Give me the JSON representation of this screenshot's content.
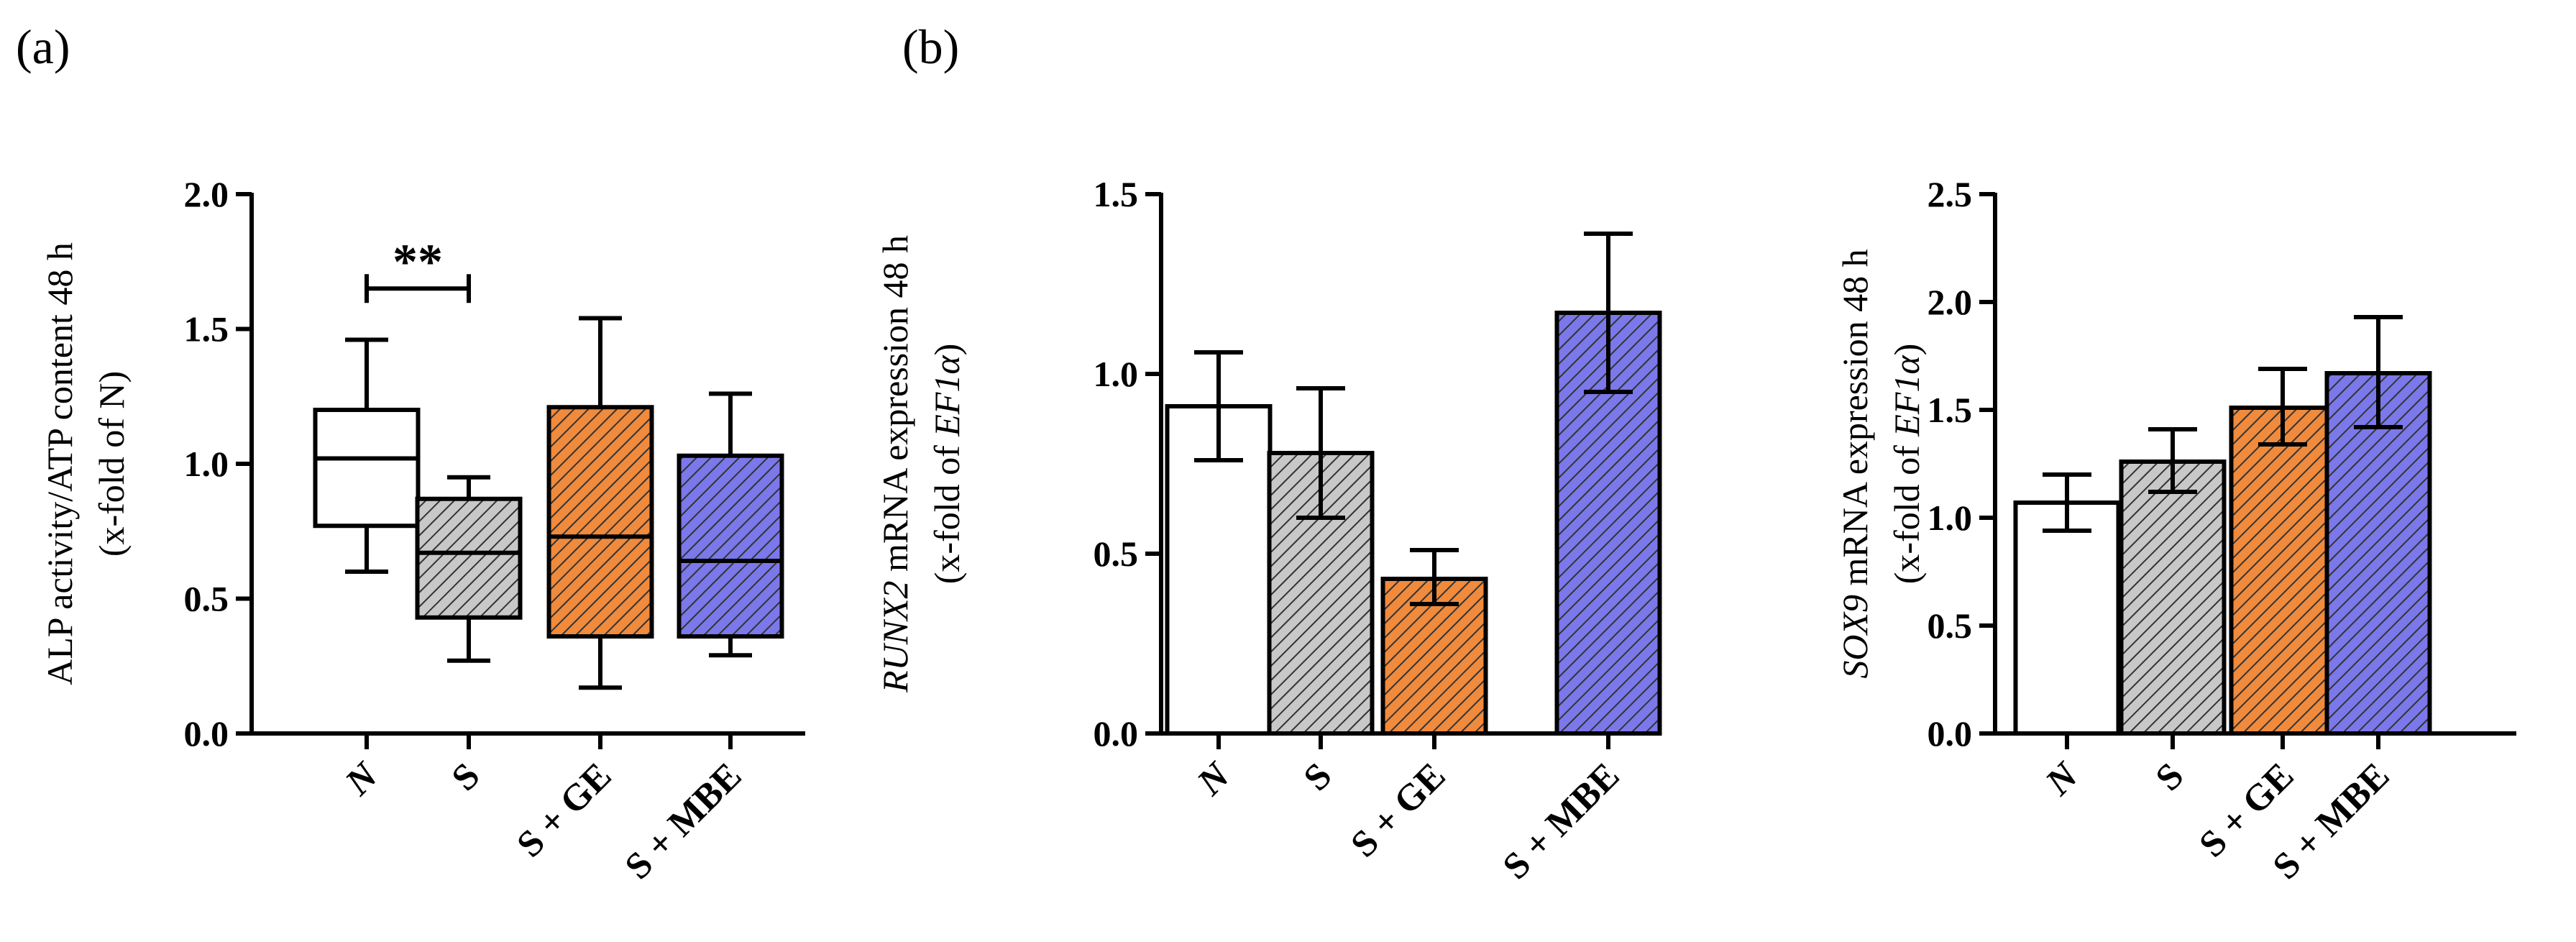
{
  "panel_labels": [
    "(a)",
    "(b)"
  ],
  "colors": {
    "N": "#ffffff",
    "S": "#c8c8c8",
    "S + GE": "#f08a3c",
    "S + MBE": "#7b78ea",
    "stroke": "#000000"
  },
  "chart_data": [
    {
      "type": "box",
      "panel": "(a)",
      "categories": [
        "N",
        "S",
        "S + GE",
        "S + MBE"
      ],
      "ylabel_line1": "ALP activity/ATP content 48 h",
      "ylabel_line2": "(x-fold of N)",
      "ylim": [
        0,
        2.0
      ],
      "yticks": [
        "0.0",
        "0.5",
        "1.0",
        "1.5",
        "2.0"
      ],
      "boxes": [
        {
          "min": 0.6,
          "q1": 0.77,
          "median": 1.02,
          "q3": 1.2,
          "max": 1.46
        },
        {
          "min": 0.27,
          "q1": 0.43,
          "median": 0.67,
          "q3": 0.87,
          "max": 0.95
        },
        {
          "min": 0.17,
          "q1": 0.36,
          "median": 0.73,
          "q3": 1.21,
          "max": 1.54
        },
        {
          "min": 0.29,
          "q1": 0.36,
          "median": 0.64,
          "q3": 1.03,
          "max": 1.26
        }
      ],
      "significance": {
        "from": "N",
        "to": "S",
        "label": "**",
        "y": 1.65
      }
    },
    {
      "type": "bar",
      "panel": "(b)",
      "categories": [
        "N",
        "S",
        "S + GE",
        "S + MBE"
      ],
      "ylabel_gene": "RUNX2",
      "ylabel_rest": " mRNA expression 48 h",
      "ylabel_line2_pre": "(x-fold of ",
      "ylabel_line2_em": "EF1α",
      "ylabel_line2_post": ")",
      "ylim": [
        0,
        1.5
      ],
      "yticks": [
        "0.0",
        "0.5",
        "1.0",
        "1.5"
      ],
      "values": [
        0.91,
        0.78,
        0.43,
        1.17
      ],
      "err_low": [
        0.76,
        0.6,
        0.36,
        0.95
      ],
      "err_high": [
        1.06,
        0.96,
        0.51,
        1.39
      ]
    },
    {
      "type": "bar",
      "panel": "(b)",
      "categories": [
        "N",
        "S",
        "S + GE",
        "S + MBE"
      ],
      "ylabel_gene": "SOX9",
      "ylabel_rest": " mRNA expression 48 h",
      "ylabel_line2_pre": "(x-fold of ",
      "ylabel_line2_em": "EF1α",
      "ylabel_line2_post": ")",
      "ylim": [
        0,
        2.5
      ],
      "yticks": [
        "0.0",
        "0.5",
        "1.0",
        "1.5",
        "2.0",
        "2.5"
      ],
      "values": [
        1.07,
        1.26,
        1.51,
        1.67
      ],
      "err_low": [
        0.94,
        1.12,
        1.34,
        1.42
      ],
      "err_high": [
        1.2,
        1.41,
        1.69,
        1.93
      ]
    }
  ]
}
